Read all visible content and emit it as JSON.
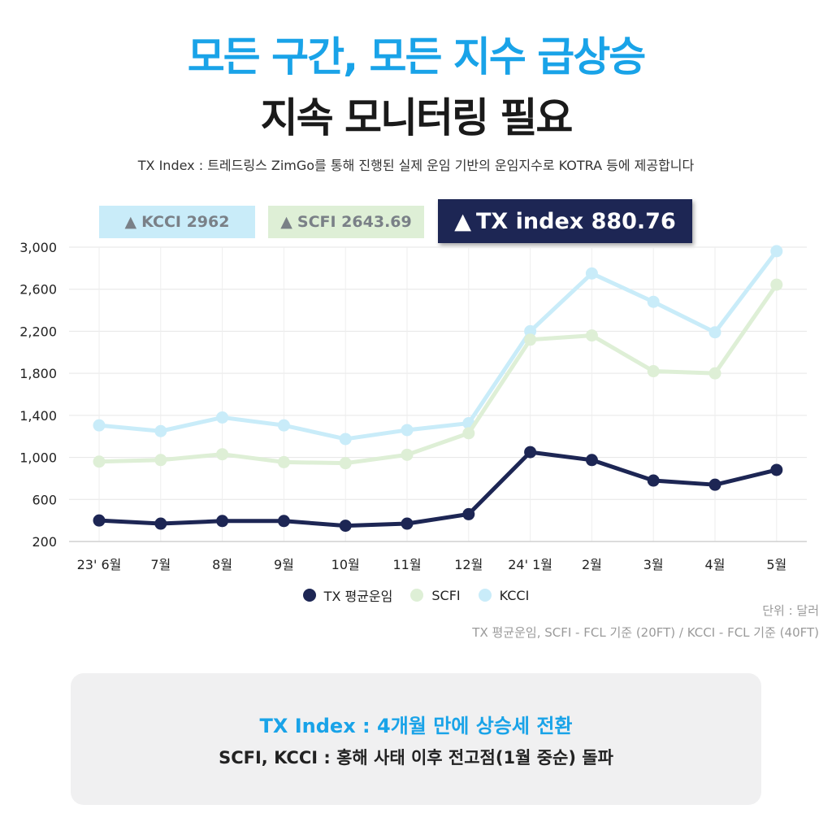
{
  "header": {
    "title_line1": "모든 구간, 모든 지수 급상승",
    "title_line2": "지속 모니터링 필요",
    "subtitle": "TX Index : 트레드링스 ZimGo를 통해 진행된 실제 운임 기반의 운임지수로 KOTRA 등에 제공합니다"
  },
  "badges": {
    "kcci": {
      "arrow": "▲",
      "label": "KCCI 2962"
    },
    "scfi": {
      "arrow": "▲",
      "label": "SCFI 2643.69"
    },
    "tx": {
      "arrow": "▲",
      "label": "TX index 880.76"
    }
  },
  "chart_data": {
    "type": "line",
    "categories": [
      "23' 6월",
      "7월",
      "8월",
      "9월",
      "10월",
      "11월",
      "12월",
      "24' 1월",
      "2월",
      "3월",
      "4월",
      "5월"
    ],
    "yticks": [
      "3,000",
      "2,600",
      "2,200",
      "1,800",
      "1,400",
      "1,000",
      "600",
      "200"
    ],
    "ylim": [
      200,
      3000
    ],
    "grid": true,
    "legend_position": "bottom",
    "series": [
      {
        "name": "KCCI",
        "color": "#c9ecf9",
        "values": [
          1305,
          1250,
          1380,
          1305,
          1175,
          1260,
          1325,
          2200,
          2750,
          2480,
          2190,
          2962
        ]
      },
      {
        "name": "SCFI",
        "color": "#deefd6",
        "values": [
          960,
          975,
          1030,
          955,
          945,
          1025,
          1230,
          2120,
          2160,
          1820,
          1800,
          2643.69
        ]
      },
      {
        "name": "TX 평균운임",
        "color": "#1d2654",
        "values": [
          400,
          370,
          395,
          395,
          350,
          370,
          460,
          1050,
          975,
          780,
          740,
          880.76
        ]
      }
    ]
  },
  "legend": [
    {
      "label": "TX 평균운임",
      "color": "#1d2654"
    },
    {
      "label": "SCFI",
      "color": "#deefd6"
    },
    {
      "label": "KCCI",
      "color": "#c9ecf9"
    }
  ],
  "notes": {
    "unit": "단위 : 달러",
    "basis": "TX 평균운임, SCFI - FCL 기준 (20FT) / KCCI - FCL 기준 (40FT)"
  },
  "summary": {
    "line1": "TX Index : 4개월 만에 상승세 전환",
    "line2": "SCFI, KCCI : 홍해 사태 이후 전고점(1월 중순) 돌파"
  }
}
